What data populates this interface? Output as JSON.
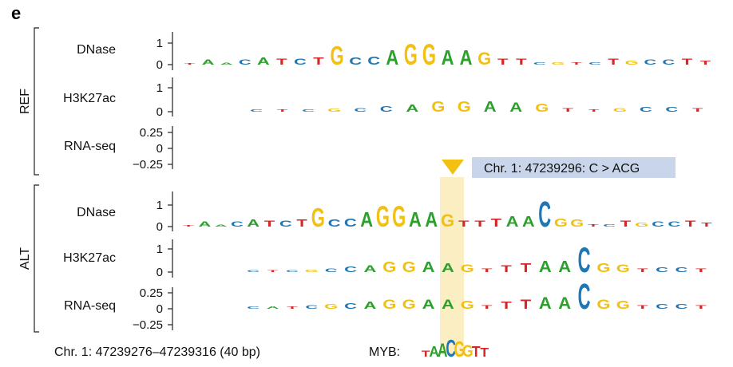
{
  "panel_letter": "e",
  "groups": [
    {
      "label": "REF"
    },
    {
      "label": "ALT"
    }
  ],
  "tracks": [
    {
      "label": "DNase",
      "ticks": [
        "1",
        "0"
      ]
    },
    {
      "label": "H3K27ac",
      "ticks": [
        "1",
        "0"
      ]
    },
    {
      "label": "RNA-seq",
      "ticks": [
        "0.25",
        "0",
        "−0.25"
      ]
    },
    {
      "label": "DNase",
      "ticks": [
        "1",
        "0"
      ]
    },
    {
      "label": "H3K27ac",
      "ticks": [
        "1",
        "0"
      ]
    },
    {
      "label": "RNA-seq",
      "ticks": [
        "0.25",
        "0",
        "−0.25"
      ]
    }
  ],
  "callout": {
    "text": "Chr. 1: 47239296: C > ACG"
  },
  "footer": {
    "region": "Chr. 1: 47239276–47239316 (40 bp)",
    "motif_label": "MYB:"
  },
  "colors": {
    "A": "#2ca02c",
    "C": "#1f77b4",
    "G": "#f2c012",
    "T": "#d62728",
    "highlight": "#fbeec3",
    "callout_box": "#c9d5ea",
    "callout_arrow": "#f2c012"
  },
  "sequence_logos": {
    "ref_dnase": [
      {
        "letter": "T",
        "h": 0.08
      },
      {
        "letter": "A",
        "h": 0.25
      },
      {
        "letter": "A",
        "h": 0.1
      },
      {
        "letter": "C",
        "h": 0.25
      },
      {
        "letter": "A",
        "h": 0.35
      },
      {
        "letter": "T",
        "h": 0.3
      },
      {
        "letter": "C",
        "h": 0.3
      },
      {
        "letter": "T",
        "h": 0.35
      },
      {
        "letter": "G",
        "h": 0.9
      },
      {
        "letter": "C",
        "h": 0.35
      },
      {
        "letter": "C",
        "h": 0.4
      },
      {
        "letter": "A",
        "h": 0.7
      },
      {
        "letter": "G",
        "h": 1.0
      },
      {
        "letter": "G",
        "h": 1.0
      },
      {
        "letter": "A",
        "h": 0.7
      },
      {
        "letter": "A",
        "h": 0.7
      },
      {
        "letter": "G",
        "h": 0.6
      },
      {
        "letter": "T",
        "h": 0.3
      },
      {
        "letter": "T",
        "h": 0.3
      },
      {
        "letter": "C",
        "h": 0.12
      },
      {
        "letter": "G",
        "h": 0.12
      },
      {
        "letter": "T",
        "h": 0.12
      },
      {
        "letter": "C",
        "h": 0.12
      },
      {
        "letter": "T",
        "h": 0.3
      },
      {
        "letter": "G",
        "h": 0.2
      },
      {
        "letter": "C",
        "h": 0.25
      },
      {
        "letter": "C",
        "h": 0.25
      },
      {
        "letter": "T",
        "h": 0.3
      },
      {
        "letter": "T",
        "h": 0.2
      }
    ],
    "ref_h3k27ac": [
      {
        "letter": "C",
        "h": 0.1
      },
      {
        "letter": "T",
        "h": 0.1
      },
      {
        "letter": "C",
        "h": 0.1
      },
      {
        "letter": "G",
        "h": 0.12
      },
      {
        "letter": "C",
        "h": 0.15
      },
      {
        "letter": "C",
        "h": 0.25
      },
      {
        "letter": "A",
        "h": 0.3
      },
      {
        "letter": "G",
        "h": 0.45
      },
      {
        "letter": "G",
        "h": 0.45
      },
      {
        "letter": "A",
        "h": 0.45
      },
      {
        "letter": "A",
        "h": 0.4
      },
      {
        "letter": "G",
        "h": 0.35
      },
      {
        "letter": "T",
        "h": 0.15
      },
      {
        "letter": "T",
        "h": 0.1
      },
      {
        "letter": "G",
        "h": 0.15
      },
      {
        "letter": "C",
        "h": 0.2
      },
      {
        "letter": "C",
        "h": 0.2
      },
      {
        "letter": "T",
        "h": 0.15
      }
    ],
    "ref_rna": [],
    "alt_dnase": [
      {
        "letter": "T",
        "h": 0.08
      },
      {
        "letter": "A",
        "h": 0.25
      },
      {
        "letter": "A",
        "h": 0.1
      },
      {
        "letter": "C",
        "h": 0.25
      },
      {
        "letter": "A",
        "h": 0.35
      },
      {
        "letter": "T",
        "h": 0.3
      },
      {
        "letter": "C",
        "h": 0.3
      },
      {
        "letter": "T",
        "h": 0.35
      },
      {
        "letter": "G",
        "h": 0.9
      },
      {
        "letter": "C",
        "h": 0.35
      },
      {
        "letter": "C",
        "h": 0.4
      },
      {
        "letter": "A",
        "h": 0.7
      },
      {
        "letter": "G",
        "h": 1.0
      },
      {
        "letter": "G",
        "h": 1.0
      },
      {
        "letter": "A",
        "h": 0.7
      },
      {
        "letter": "A",
        "h": 0.7
      },
      {
        "letter": "G",
        "h": 0.6
      },
      {
        "letter": "T",
        "h": 0.3
      },
      {
        "letter": "T",
        "h": 0.3
      },
      {
        "letter": "T",
        "h": 0.4
      },
      {
        "letter": "A",
        "h": 0.5
      },
      {
        "letter": "A",
        "h": 0.5
      },
      {
        "letter": "C",
        "h": 1.2
      },
      {
        "letter": "G",
        "h": 0.4
      },
      {
        "letter": "G",
        "h": 0.35
      },
      {
        "letter": "T",
        "h": 0.12
      },
      {
        "letter": "C",
        "h": 0.12
      },
      {
        "letter": "T",
        "h": 0.3
      },
      {
        "letter": "G",
        "h": 0.2
      },
      {
        "letter": "C",
        "h": 0.25
      },
      {
        "letter": "C",
        "h": 0.25
      },
      {
        "letter": "T",
        "h": 0.3
      },
      {
        "letter": "T",
        "h": 0.2
      }
    ],
    "alt_h3k27ac": [
      {
        "letter": "C",
        "h": 0.1
      },
      {
        "letter": "T",
        "h": 0.1
      },
      {
        "letter": "C",
        "h": 0.1
      },
      {
        "letter": "G",
        "h": 0.12
      },
      {
        "letter": "C",
        "h": 0.15
      },
      {
        "letter": "C",
        "h": 0.25
      },
      {
        "letter": "A",
        "h": 0.3
      },
      {
        "letter": "G",
        "h": 0.45
      },
      {
        "letter": "G",
        "h": 0.45
      },
      {
        "letter": "A",
        "h": 0.45
      },
      {
        "letter": "A",
        "h": 0.4
      },
      {
        "letter": "G",
        "h": 0.35
      },
      {
        "letter": "T",
        "h": 0.15
      },
      {
        "letter": "T",
        "h": 0.3
      },
      {
        "letter": "T",
        "h": 0.4
      },
      {
        "letter": "A",
        "h": 0.5
      },
      {
        "letter": "A",
        "h": 0.5
      },
      {
        "letter": "C",
        "h": 1.1
      },
      {
        "letter": "G",
        "h": 0.4
      },
      {
        "letter": "G",
        "h": 0.35
      },
      {
        "letter": "T",
        "h": 0.15
      },
      {
        "letter": "C",
        "h": 0.2
      },
      {
        "letter": "C",
        "h": 0.2
      },
      {
        "letter": "T",
        "h": 0.15
      }
    ],
    "alt_rna": [
      {
        "letter": "C",
        "h": 0.1
      },
      {
        "letter": "A",
        "h": 0.1
      },
      {
        "letter": "T",
        "h": 0.1
      },
      {
        "letter": "C",
        "h": 0.15
      },
      {
        "letter": "G",
        "h": 0.2
      },
      {
        "letter": "C",
        "h": 0.25
      },
      {
        "letter": "A",
        "h": 0.3
      },
      {
        "letter": "G",
        "h": 0.4
      },
      {
        "letter": "G",
        "h": 0.4
      },
      {
        "letter": "A",
        "h": 0.4
      },
      {
        "letter": "A",
        "h": 0.4
      },
      {
        "letter": "G",
        "h": 0.35
      },
      {
        "letter": "T",
        "h": 0.15
      },
      {
        "letter": "T",
        "h": 0.3
      },
      {
        "letter": "T",
        "h": 0.4
      },
      {
        "letter": "A",
        "h": 0.5
      },
      {
        "letter": "A",
        "h": 0.5
      },
      {
        "letter": "C",
        "h": 1.1
      },
      {
        "letter": "G",
        "h": 0.4
      },
      {
        "letter": "G",
        "h": 0.35
      },
      {
        "letter": "T",
        "h": 0.15
      },
      {
        "letter": "C",
        "h": 0.2
      },
      {
        "letter": "C",
        "h": 0.2
      },
      {
        "letter": "T",
        "h": 0.15
      }
    ],
    "myb_motif": [
      {
        "letter": "T",
        "h": 0.35
      },
      {
        "letter": "A",
        "h": 0.6
      },
      {
        "letter": "A",
        "h": 0.8
      },
      {
        "letter": "C",
        "h": 1.0
      },
      {
        "letter": "G",
        "h": 0.9
      },
      {
        "letter": "G",
        "h": 0.7
      },
      {
        "letter": "T",
        "h": 0.6
      },
      {
        "letter": "T",
        "h": 0.5
      }
    ]
  }
}
